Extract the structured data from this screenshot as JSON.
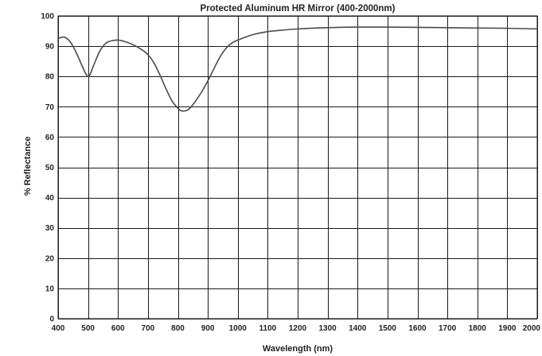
{
  "chart_data": {
    "type": "line",
    "title": "Protected Aluminum HR Mirror (400-2000nm)",
    "xlabel": "Wavelength (nm)",
    "ylabel": "% Reflectance",
    "xlim": [
      400,
      2000
    ],
    "ylim": [
      0,
      100
    ],
    "x_ticks": [
      400,
      500,
      600,
      700,
      800,
      900,
      1000,
      1100,
      1200,
      1300,
      1400,
      1500,
      1600,
      1700,
      1800,
      1900,
      2000
    ],
    "y_ticks": [
      0,
      10,
      20,
      30,
      40,
      50,
      60,
      70,
      80,
      90,
      100
    ],
    "grid": true,
    "line_color": "#4a4a4a",
    "series": [
      {
        "x": [
          400,
          420,
          440,
          460,
          480,
          495,
          505,
          520,
          540,
          560,
          580,
          600,
          620,
          650,
          680,
          700,
          720,
          740,
          760,
          780,
          800,
          810,
          820,
          830,
          840,
          860,
          880,
          900,
          920,
          940,
          960,
          980,
          1000,
          1050,
          1100,
          1150,
          1200,
          1300,
          1400,
          1500,
          1600,
          1700,
          1800,
          1900,
          2000
        ],
        "y": [
          92.5,
          93,
          91.5,
          88,
          83.5,
          80.5,
          80.3,
          84,
          88.5,
          91,
          91.8,
          92,
          91.6,
          90.5,
          88.8,
          87.2,
          84.5,
          80.5,
          76,
          72,
          69.5,
          68.7,
          68.6,
          68.8,
          69.5,
          72,
          75,
          78.5,
          82.5,
          86.3,
          89.2,
          91,
          92,
          93.8,
          94.8,
          95.3,
          95.7,
          96.1,
          96.3,
          96.3,
          96.2,
          96.1,
          96,
          95.9,
          95.7
        ]
      }
    ]
  }
}
